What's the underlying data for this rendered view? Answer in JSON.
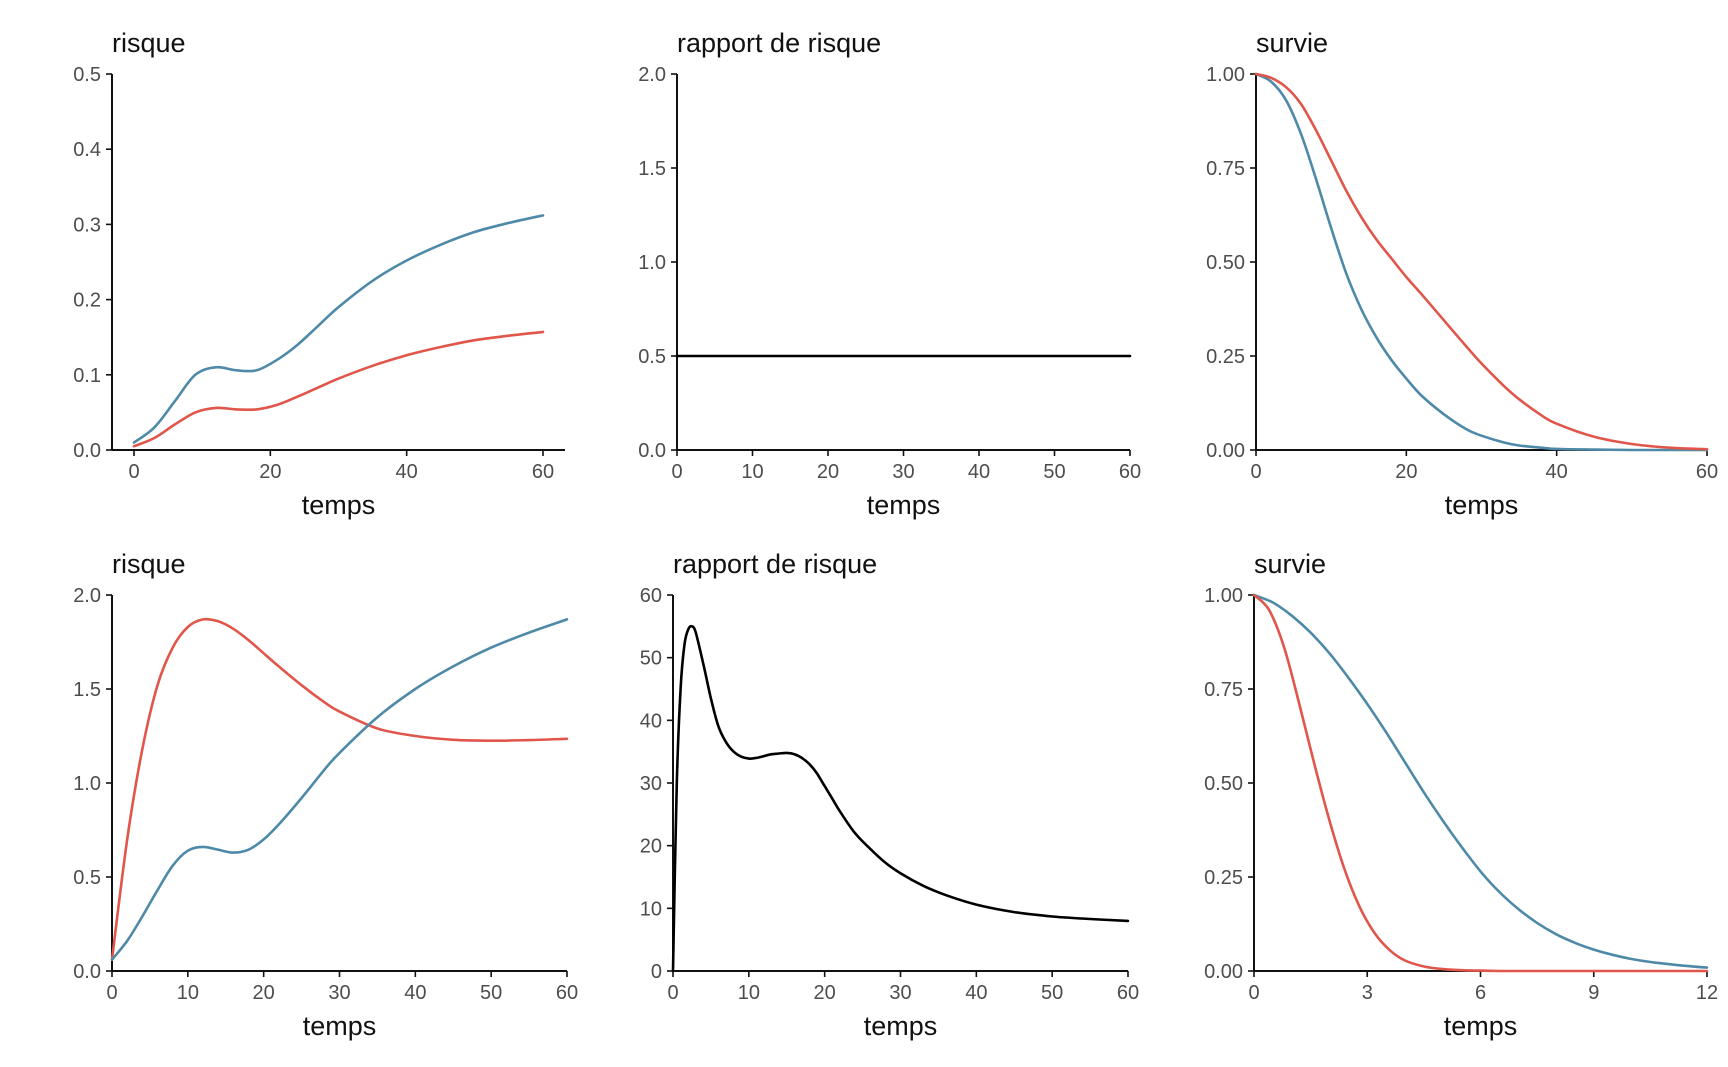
{
  "colors": {
    "red": "#e0564b",
    "blue": "#4e8aa8",
    "black": "#000000"
  },
  "chart_data": [
    {
      "type": "line",
      "title": "risque",
      "xlabel": "temps",
      "ylabel": "",
      "xlim": [
        0,
        60
      ],
      "ylim": [
        0,
        0.5
      ],
      "xticks": [
        "0",
        "20",
        "40",
        "60"
      ],
      "yticks": [
        "0.0",
        "0.1",
        "0.2",
        "0.3",
        "0.4",
        "0.5"
      ],
      "grid": false,
      "legend": "none",
      "series": [
        {
          "color": "#4e8aa8",
          "x": [
            0,
            3,
            6,
            9,
            12,
            15,
            18,
            21,
            24,
            27,
            30,
            35,
            40,
            45,
            50,
            55,
            60
          ],
          "y": [
            0.01,
            0.03,
            0.065,
            0.1,
            0.11,
            0.106,
            0.106,
            0.12,
            0.14,
            0.165,
            0.19,
            0.225,
            0.252,
            0.273,
            0.29,
            0.302,
            0.312
          ]
        },
        {
          "color": "#e0564b",
          "x": [
            0,
            3,
            6,
            9,
            12,
            15,
            18,
            21,
            24,
            27,
            30,
            35,
            40,
            45,
            50,
            55,
            60
          ],
          "y": [
            0.005,
            0.016,
            0.034,
            0.05,
            0.056,
            0.054,
            0.054,
            0.06,
            0.071,
            0.083,
            0.095,
            0.112,
            0.126,
            0.137,
            0.146,
            0.152,
            0.157
          ]
        }
      ]
    },
    {
      "type": "line",
      "title": "rapport de risque",
      "xlabel": "temps",
      "ylabel": "",
      "xlim": [
        0,
        60
      ],
      "ylim": [
        0,
        2.0
      ],
      "xticks": [
        "0",
        "10",
        "20",
        "30",
        "40",
        "50",
        "60"
      ],
      "yticks": [
        "0.0",
        "0.5",
        "1.0",
        "1.5",
        "2.0"
      ],
      "grid": false,
      "legend": "none",
      "series": [
        {
          "color": "#000000",
          "x": [
            0,
            60
          ],
          "y": [
            0.5,
            0.5
          ]
        }
      ]
    },
    {
      "type": "line",
      "title": "survie",
      "xlabel": "temps",
      "ylabel": "",
      "xlim": [
        0,
        60
      ],
      "ylim": [
        0,
        1.0
      ],
      "xticks": [
        "0",
        "20",
        "40",
        "60"
      ],
      "yticks": [
        "0.00",
        "0.25",
        "0.50",
        "0.75",
        "1.00"
      ],
      "grid": false,
      "legend": "none",
      "series": [
        {
          "color": "#4e8aa8",
          "x": [
            0,
            2,
            4,
            6,
            8,
            10,
            12,
            14,
            16,
            18,
            20,
            22,
            25,
            28,
            30,
            33,
            35,
            38,
            40,
            45,
            50,
            55,
            60
          ],
          "y": [
            1.0,
            0.98,
            0.93,
            0.84,
            0.72,
            0.59,
            0.47,
            0.375,
            0.3,
            0.24,
            0.19,
            0.145,
            0.095,
            0.055,
            0.038,
            0.02,
            0.012,
            0.006,
            0.003,
            0.001,
            0.0,
            0.0,
            0.0
          ]
        },
        {
          "color": "#e0564b",
          "x": [
            0,
            2,
            4,
            6,
            8,
            10,
            12,
            14,
            16,
            18,
            20,
            22,
            25,
            28,
            30,
            33,
            35,
            38,
            40,
            45,
            50,
            55,
            60
          ],
          "y": [
            1.0,
            0.99,
            0.965,
            0.92,
            0.85,
            0.77,
            0.69,
            0.62,
            0.56,
            0.51,
            0.46,
            0.415,
            0.345,
            0.275,
            0.23,
            0.17,
            0.135,
            0.092,
            0.07,
            0.035,
            0.016,
            0.006,
            0.002
          ]
        }
      ]
    },
    {
      "type": "line",
      "title": "risque",
      "xlabel": "temps",
      "ylabel": "",
      "xlim": [
        0,
        60
      ],
      "ylim": [
        0,
        2.0
      ],
      "xticks": [
        "0",
        "10",
        "20",
        "30",
        "40",
        "50",
        "60"
      ],
      "yticks": [
        "0.0",
        "0.5",
        "1.0",
        "1.5",
        "2.0"
      ],
      "grid": false,
      "legend": "none",
      "series": [
        {
          "color": "#e0564b",
          "x": [
            0,
            2,
            4,
            6,
            8,
            10,
            12,
            14,
            16,
            18,
            20,
            22,
            25,
            28,
            30,
            35,
            40,
            45,
            50,
            55,
            60
          ],
          "y": [
            0.06,
            0.7,
            1.18,
            1.52,
            1.72,
            1.83,
            1.87,
            1.86,
            1.82,
            1.76,
            1.69,
            1.62,
            1.52,
            1.43,
            1.38,
            1.29,
            1.25,
            1.23,
            1.225,
            1.228,
            1.235
          ]
        },
        {
          "color": "#4e8aa8",
          "x": [
            0,
            2,
            4,
            6,
            8,
            10,
            12,
            14,
            16,
            18,
            20,
            22,
            25,
            28,
            30,
            35,
            40,
            45,
            50,
            55,
            60
          ],
          "y": [
            0.06,
            0.16,
            0.29,
            0.43,
            0.56,
            0.64,
            0.66,
            0.645,
            0.63,
            0.645,
            0.7,
            0.78,
            0.92,
            1.07,
            1.16,
            1.35,
            1.5,
            1.62,
            1.72,
            1.8,
            1.87
          ]
        }
      ]
    },
    {
      "type": "line",
      "title": "rapport de risque",
      "xlabel": "temps",
      "ylabel": "",
      "xlim": [
        0,
        60
      ],
      "ylim": [
        0,
        60
      ],
      "xticks": [
        "0",
        "10",
        "20",
        "30",
        "40",
        "50",
        "60"
      ],
      "yticks": [
        "0",
        "10",
        "20",
        "30",
        "40",
        "50",
        "60"
      ],
      "grid": false,
      "legend": "none",
      "series": [
        {
          "color": "#000000",
          "x": [
            0,
            0.5,
            1,
            1.5,
            2,
            2.5,
            3,
            4,
            5,
            6,
            7,
            8,
            9,
            10,
            11,
            12,
            13,
            14,
            15,
            16,
            17,
            18,
            19,
            20,
            21,
            22,
            24,
            26,
            28,
            30,
            33,
            36,
            40,
            45,
            50,
            55,
            60
          ],
          "y": [
            0,
            30,
            45,
            52,
            54.5,
            55,
            54,
            49,
            43.5,
            39,
            36.5,
            35,
            34.2,
            33.9,
            34,
            34.3,
            34.6,
            34.7,
            34.8,
            34.6,
            34,
            33,
            31.5,
            29.5,
            27.5,
            25.5,
            22,
            19.5,
            17.3,
            15.6,
            13.6,
            12.1,
            10.6,
            9.4,
            8.7,
            8.3,
            8.0
          ]
        }
      ]
    },
    {
      "type": "line",
      "title": "survie",
      "xlabel": "temps",
      "ylabel": "",
      "xlim": [
        0,
        12
      ],
      "ylim": [
        0,
        1.0
      ],
      "xticks": [
        "0",
        "3",
        "6",
        "9",
        "12"
      ],
      "yticks": [
        "0.00",
        "0.25",
        "0.50",
        "0.75",
        "1.00"
      ],
      "grid": false,
      "legend": "none",
      "series": [
        {
          "color": "#4e8aa8",
          "x": [
            0,
            0.5,
            1,
            1.5,
            2,
            2.5,
            3,
            3.5,
            4,
            4.5,
            5,
            5.5,
            6,
            6.5,
            7,
            7.5,
            8,
            8.5,
            9,
            9.5,
            10,
            10.5,
            11,
            11.5,
            12
          ],
          "y": [
            1.0,
            0.98,
            0.945,
            0.9,
            0.845,
            0.78,
            0.71,
            0.635,
            0.555,
            0.475,
            0.4,
            0.33,
            0.265,
            0.21,
            0.165,
            0.128,
            0.098,
            0.075,
            0.057,
            0.043,
            0.032,
            0.024,
            0.018,
            0.013,
            0.009
          ]
        },
        {
          "color": "#e0564b",
          "x": [
            0,
            0.4,
            0.8,
            1.2,
            1.6,
            2.0,
            2.4,
            2.8,
            3.2,
            3.6,
            4.0,
            4.5,
            5.0,
            5.5,
            6.0,
            6.5,
            7.0,
            8.0,
            9.0,
            10.0,
            11.0,
            12.0
          ],
          "y": [
            1.0,
            0.96,
            0.86,
            0.71,
            0.55,
            0.4,
            0.27,
            0.17,
            0.1,
            0.055,
            0.028,
            0.012,
            0.005,
            0.002,
            0.001,
            0.0,
            0.0,
            0.0,
            0.0,
            0.0,
            0.0,
            0.0
          ]
        }
      ]
    }
  ]
}
